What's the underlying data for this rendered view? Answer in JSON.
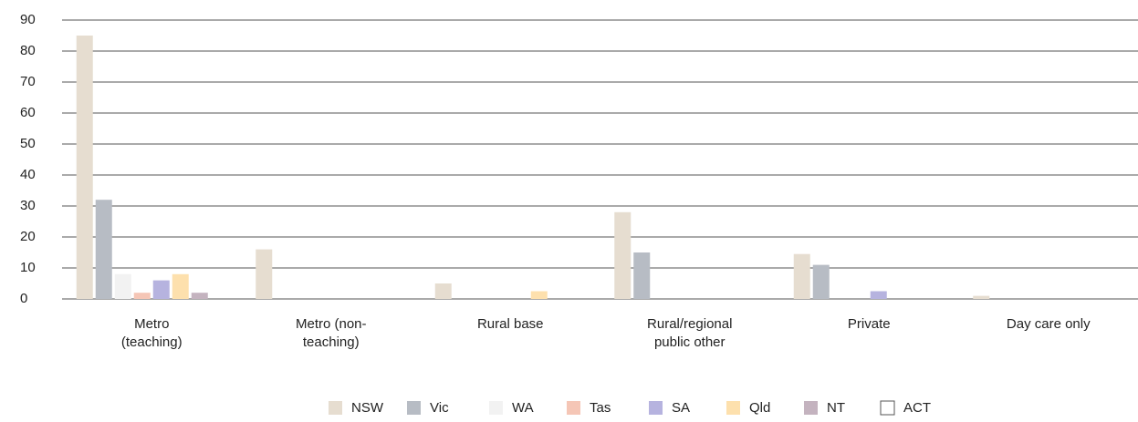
{
  "chart_data": {
    "type": "bar",
    "categories": [
      "Metro (teaching)",
      "Metro (non-teaching)",
      "Rural base",
      "Rural/regional public other",
      "Private",
      "Day care only"
    ],
    "series": [
      {
        "name": "NSW",
        "color": "#e6ddd0",
        "values": [
          85,
          16,
          5,
          28,
          14.5,
          1
        ]
      },
      {
        "name": "Vic",
        "color": "#b7bcc4",
        "values": [
          32,
          0,
          0,
          15,
          11,
          0
        ]
      },
      {
        "name": "WA",
        "color": "#f2f2f2",
        "values": [
          8,
          0,
          0,
          0,
          0,
          0
        ]
      },
      {
        "name": "Tas",
        "color": "#f5c6b6",
        "values": [
          2,
          0,
          0,
          0,
          0,
          0
        ]
      },
      {
        "name": "SA",
        "color": "#b6b3df",
        "values": [
          6,
          0,
          0,
          0,
          2.5,
          0
        ]
      },
      {
        "name": "Qld",
        "color": "#fde0ad",
        "values": [
          8,
          0,
          2.5,
          0,
          0,
          0
        ]
      },
      {
        "name": "NT",
        "color": "#c4b3bf",
        "values": [
          2,
          0,
          0,
          0,
          0,
          0
        ]
      },
      {
        "name": "ACT",
        "color": "#ffffff",
        "values": [
          0,
          0,
          0,
          0,
          0,
          0
        ]
      }
    ],
    "ylim": [
      0,
      90
    ],
    "yticks": [
      0,
      10,
      20,
      30,
      40,
      50,
      60,
      70,
      80,
      90
    ],
    "grid": true,
    "legend": "bottom"
  }
}
